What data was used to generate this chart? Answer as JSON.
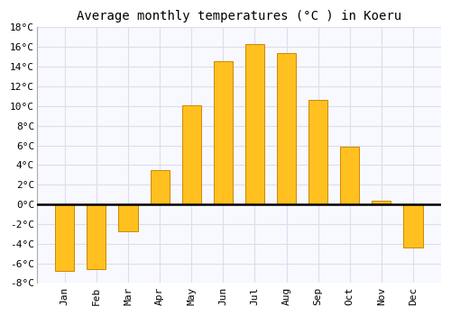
{
  "title": "Average monthly temperatures (°C ) in Koeru",
  "months": [
    "Jan",
    "Feb",
    "Mar",
    "Apr",
    "May",
    "Jun",
    "Jul",
    "Aug",
    "Sep",
    "Oct",
    "Nov",
    "Dec"
  ],
  "values": [
    -6.8,
    -6.6,
    -2.7,
    3.5,
    10.1,
    14.6,
    16.3,
    15.4,
    10.6,
    5.9,
    0.4,
    -4.4
  ],
  "bar_color": "#FFC020",
  "bar_edge_color": "#CC8800",
  "ylim": [
    -8,
    18
  ],
  "yticks": [
    -8,
    -6,
    -4,
    -2,
    0,
    2,
    4,
    6,
    8,
    10,
    12,
    14,
    16,
    18
  ],
  "ytick_labels": [
    "-8°C",
    "-6°C",
    "-4°C",
    "-2°C",
    "0°C",
    "2°C",
    "4°C",
    "6°C",
    "8°C",
    "10°C",
    "12°C",
    "14°C",
    "16°C",
    "18°C"
  ],
  "background_color": "#FFFFFF",
  "plot_bg_color": "#F8F8FF",
  "grid_color": "#DDDDEE",
  "title_fontsize": 10,
  "tick_fontsize": 8,
  "font_family": "DejaVu Sans Mono"
}
